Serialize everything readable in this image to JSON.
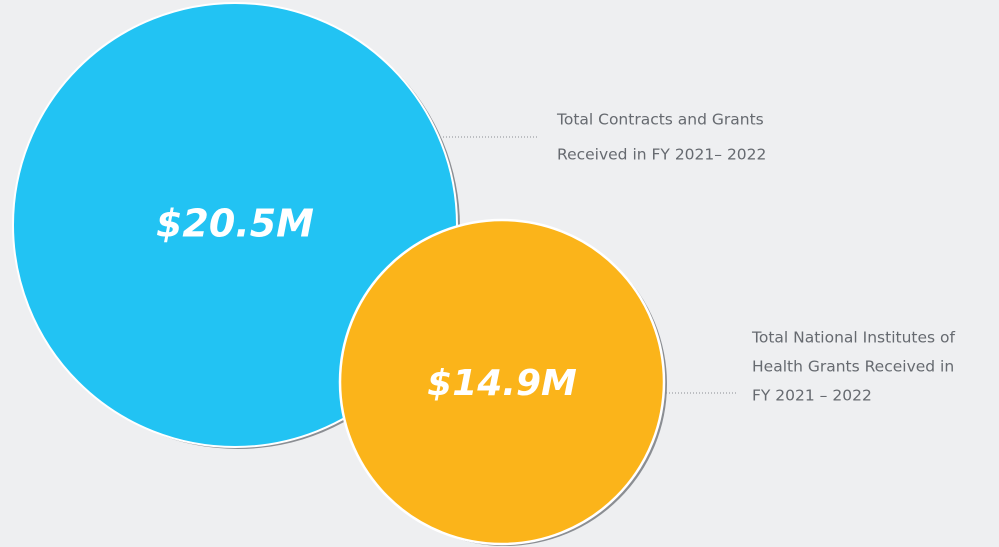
{
  "items": [
    {
      "amount": "$20.5M",
      "caption": [
        "Total Contracts and Grants",
        "Received in FY 2021– 2022"
      ]
    },
    {
      "amount": "$14.9M",
      "caption": [
        "Total National Institutes of",
        "Health Grants Received in",
        "FY 2021 – 2022"
      ]
    }
  ]
}
